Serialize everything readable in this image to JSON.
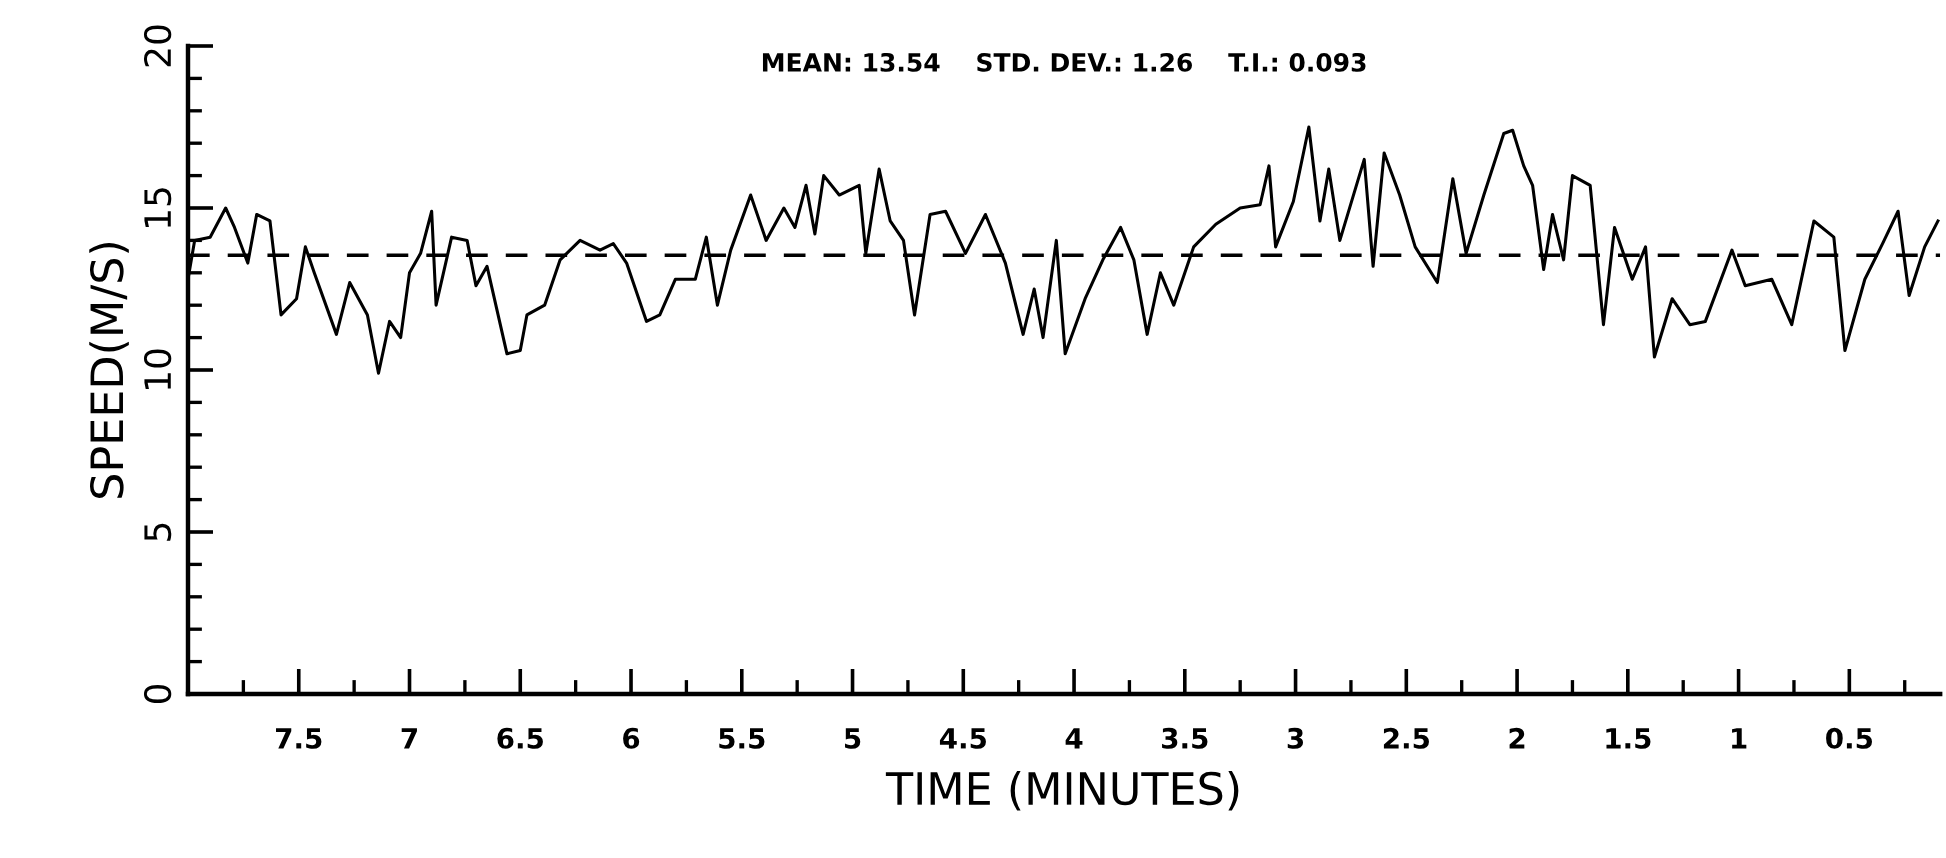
{
  "chart_data": {
    "type": "line",
    "xlabel": "TIME (MINUTES)",
    "ylabel": "SPEED(M/S)",
    "annotations": [
      "MEAN: 13.54    STD. DEV.: 1.26    T.I.: 0.093"
    ],
    "x": [
      8.0,
      7.97,
      7.9,
      7.83,
      7.79,
      7.73,
      7.69,
      7.63,
      7.58,
      7.51,
      7.47,
      7.43,
      7.33,
      7.27,
      7.19,
      7.14,
      7.09,
      7.04,
      7.0,
      6.95,
      6.9,
      6.88,
      6.81,
      6.74,
      6.7,
      6.65,
      6.56,
      6.5,
      6.47,
      6.39,
      6.32,
      6.23,
      6.14,
      6.08,
      6.02,
      5.93,
      5.87,
      5.8,
      5.71,
      5.66,
      5.61,
      5.55,
      5.46,
      5.39,
      5.31,
      5.26,
      5.21,
      5.17,
      5.13,
      5.06,
      4.97,
      4.94,
      4.88,
      4.83,
      4.77,
      4.72,
      4.65,
      4.58,
      4.49,
      4.4,
      4.31,
      4.23,
      4.18,
      4.14,
      4.08,
      4.04,
      3.95,
      3.87,
      3.79,
      3.73,
      3.67,
      3.61,
      3.55,
      3.46,
      3.36,
      3.25,
      3.16,
      3.12,
      3.09,
      3.01,
      2.94,
      2.89,
      2.85,
      2.8,
      2.69,
      2.65,
      2.6,
      2.53,
      2.46,
      2.36,
      2.29,
      2.23,
      2.15,
      2.06,
      2.02,
      1.97,
      1.93,
      1.88,
      1.84,
      1.79,
      1.75,
      1.67,
      1.61,
      1.56,
      1.48,
      1.42,
      1.38,
      1.3,
      1.22,
      1.15,
      1.03,
      0.97,
      0.85,
      0.76,
      0.66,
      0.57,
      0.52,
      0.43,
      0.35,
      0.28,
      0.23,
      0.16,
      0.1
    ],
    "series": [
      {
        "color": "#000000",
        "values": [
          12.8,
          14.0,
          14.1,
          15.0,
          14.4,
          13.3,
          14.8,
          14.6,
          11.7,
          12.2,
          13.8,
          13.0,
          11.1,
          12.7,
          11.7,
          9.9,
          11.5,
          11.0,
          13.0,
          13.6,
          14.9,
          12.0,
          14.1,
          14.0,
          12.6,
          13.2,
          10.5,
          10.6,
          11.7,
          12.0,
          13.4,
          14.0,
          13.7,
          13.9,
          13.3,
          11.5,
          11.7,
          12.8,
          12.8,
          14.1,
          12.0,
          13.7,
          15.4,
          14.0,
          15.0,
          14.4,
          15.7,
          14.2,
          16.0,
          15.4,
          15.7,
          13.6,
          16.2,
          14.6,
          14.0,
          11.7,
          14.8,
          14.9,
          13.6,
          14.8,
          13.3,
          11.1,
          12.5,
          11.0,
          14.0,
          10.5,
          12.2,
          13.4,
          14.4,
          13.4,
          11.1,
          13.0,
          12.0,
          13.8,
          14.5,
          15.0,
          15.1,
          16.3,
          13.8,
          15.2,
          17.5,
          14.6,
          16.2,
          14.0,
          16.5,
          13.2,
          16.7,
          15.4,
          13.8,
          12.7,
          15.9,
          13.6,
          15.4,
          17.3,
          17.4,
          16.3,
          15.7,
          13.1,
          14.8,
          13.4,
          16.0,
          15.7,
          11.4,
          14.4,
          12.8,
          13.8,
          10.4,
          12.2,
          11.4,
          11.5,
          13.7,
          12.6,
          12.8,
          11.4,
          14.6,
          14.1,
          10.6,
          12.8,
          13.9,
          14.9,
          12.3,
          13.8,
          14.6
        ]
      }
    ],
    "ref_lines": [
      {
        "axis": "y",
        "value": 13.54,
        "color": "#000000",
        "line_style": "dashed"
      }
    ],
    "xlim": [
      8.0,
      0.09
    ],
    "xticks": [
      {
        "value": 7.75,
        "label": null
      },
      {
        "value": 7.5,
        "label": "7.5"
      },
      {
        "value": 7.25,
        "label": null
      },
      {
        "value": 7,
        "label": "7"
      },
      {
        "value": 6.75,
        "label": null
      },
      {
        "value": 6.5,
        "label": "6.5"
      },
      {
        "value": 6.25,
        "label": null
      },
      {
        "value": 6,
        "label": "6"
      },
      {
        "value": 5.75,
        "label": null
      },
      {
        "value": 5.5,
        "label": "5.5"
      },
      {
        "value": 5.25,
        "label": null
      },
      {
        "value": 5,
        "label": "5"
      },
      {
        "value": 4.75,
        "label": null
      },
      {
        "value": 4.5,
        "label": "4.5"
      },
      {
        "value": 4.25,
        "label": null
      },
      {
        "value": 4,
        "label": "4"
      },
      {
        "value": 3.75,
        "label": null
      },
      {
        "value": 3.5,
        "label": "3.5"
      },
      {
        "value": 3.25,
        "label": null
      },
      {
        "value": 3,
        "label": "3"
      },
      {
        "value": 2.75,
        "label": null
      },
      {
        "value": 2.5,
        "label": "2.5"
      },
      {
        "value": 2.25,
        "label": null
      },
      {
        "value": 2,
        "label": "2"
      },
      {
        "value": 1.75,
        "label": null
      },
      {
        "value": 1.5,
        "label": "1.5"
      },
      {
        "value": 1.25,
        "label": null
      },
      {
        "value": 1,
        "label": "1"
      },
      {
        "value": 0.75,
        "label": null
      },
      {
        "value": 0.5,
        "label": "0.5"
      },
      {
        "value": 0.25,
        "label": null
      }
    ],
    "ylim": [
      0,
      20
    ],
    "yticks": [
      0,
      {
        "value": 1,
        "label": null
      },
      {
        "value": 2,
        "label": null
      },
      {
        "value": 3,
        "label": null
      },
      {
        "value": 4,
        "label": null
      },
      5,
      {
        "value": 6,
        "label": null
      },
      {
        "value": 7,
        "label": null
      },
      {
        "value": 8,
        "label": null
      },
      {
        "value": 9,
        "label": null
      },
      10,
      {
        "value": 11,
        "label": null
      },
      {
        "value": 12,
        "label": null
      },
      {
        "value": 13,
        "label": null
      },
      {
        "value": 14,
        "label": null
      },
      15,
      {
        "value": 16,
        "label": null
      },
      {
        "value": 17,
        "label": null
      },
      {
        "value": 18,
        "label": null
      },
      {
        "value": 19,
        "label": null
      },
      20
    ],
    "grid": false,
    "legend": false,
    "marker": "none",
    "line_style": "solid"
  }
}
